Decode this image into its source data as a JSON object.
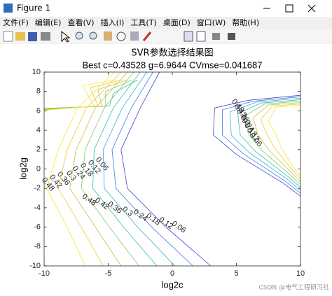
{
  "window": {
    "title": "Figure 1",
    "menu": [
      "文件(F)",
      "编辑(E)",
      "查看(V)",
      "插入(I)",
      "工具(T)",
      "桌面(D)",
      "窗口(W)",
      "帮助(H)"
    ]
  },
  "watermark": "CSDN @电气工程研习社",
  "chart_data": {
    "type": "contour",
    "title": "SVR参数选择结果图",
    "subtitle": "Best c=0.43528 g=6.9644 CVmse=0.041687",
    "x_label": "log2c",
    "y_label": "log2g",
    "xlim": [
      -10,
      10
    ],
    "ylim": [
      -10,
      10
    ],
    "xticks": [
      -10,
      -5,
      0,
      5,
      10
    ],
    "yticks": [
      -10,
      -8,
      -6,
      -4,
      -2,
      0,
      2,
      4,
      6,
      8,
      10
    ],
    "levels": [
      0.06,
      0.12,
      0.18,
      0.24,
      0.3,
      0.36,
      0.42,
      0.48
    ],
    "colors": [
      "#4a3fd0",
      "#3a7fe8",
      "#2fb0d0",
      "#35c4a0",
      "#7ccb6a",
      "#c0c240",
      "#f0c830",
      "#f5e830"
    ],
    "label_color": "#e00000"
  }
}
